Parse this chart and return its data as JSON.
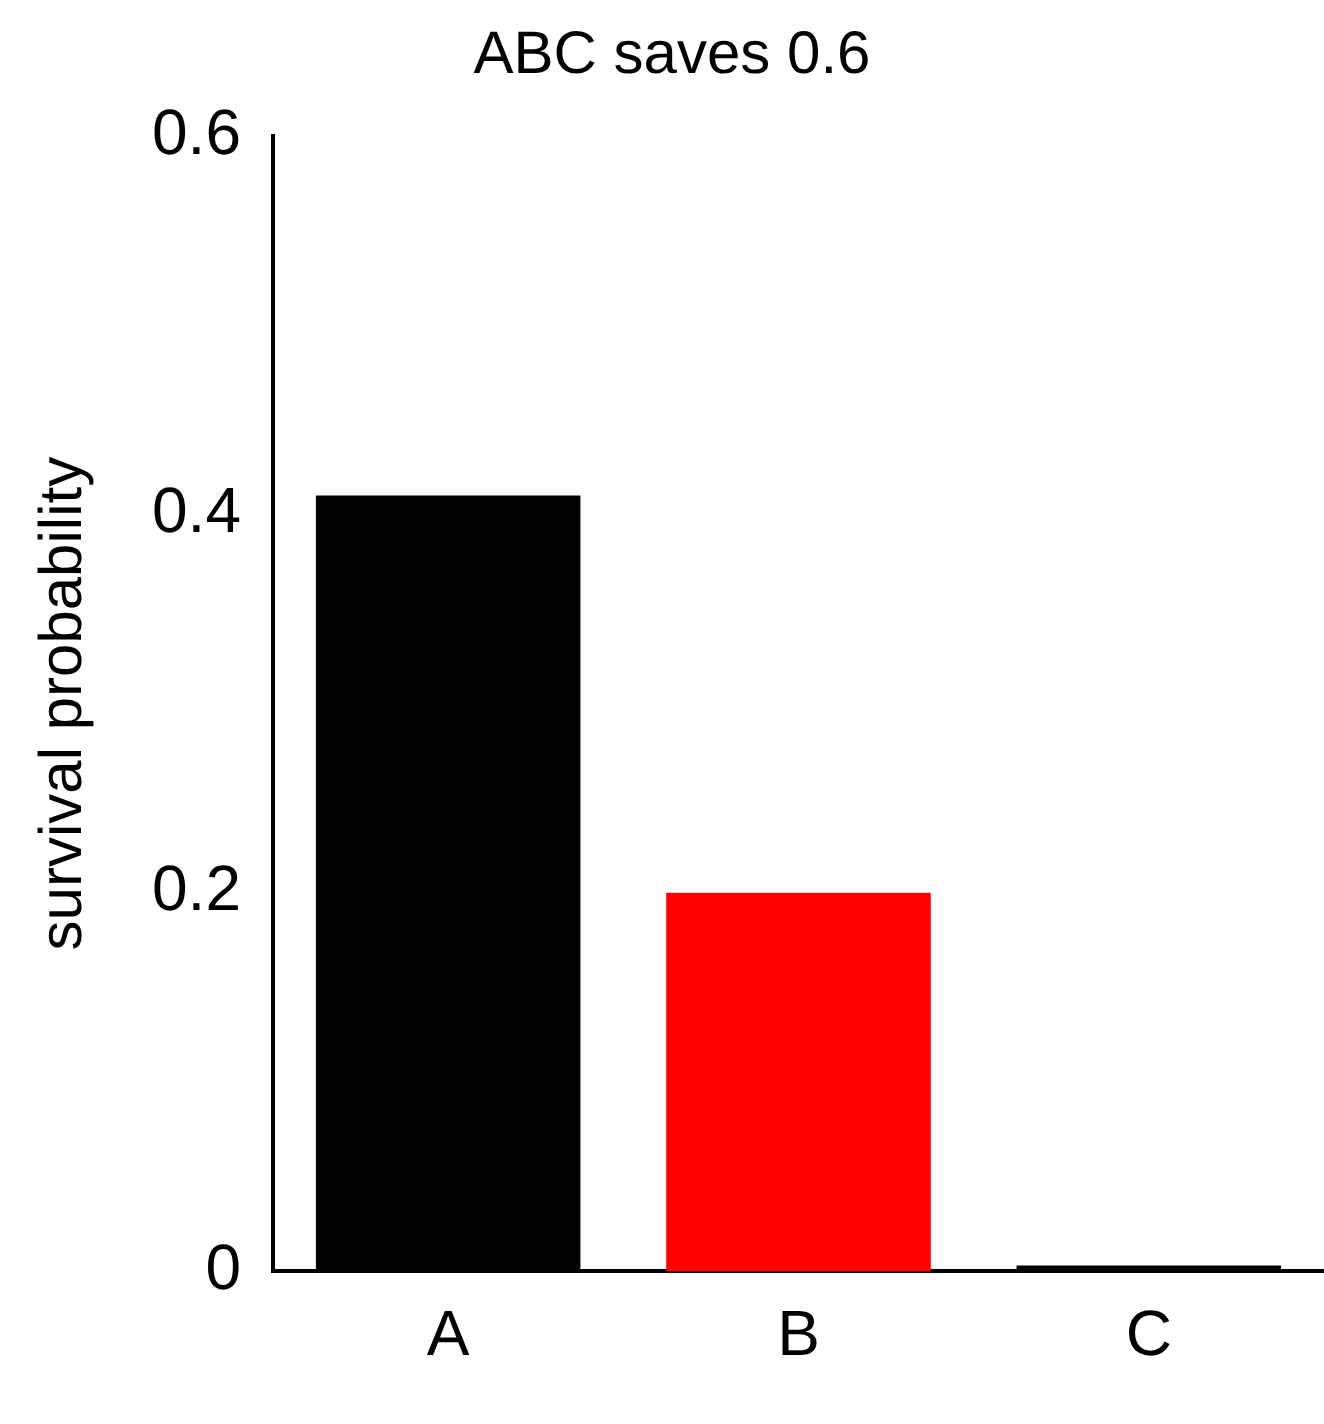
{
  "chart_data": {
    "type": "bar",
    "title": "ABC saves 0.6",
    "ylabel": "survival probability",
    "categories": [
      "A",
      "B",
      "C"
    ],
    "values": [
      0.41,
      0.2,
      0.003
    ],
    "colors": [
      "#000000",
      "#ff0000",
      "#000000"
    ],
    "ylim": [
      0,
      0.6
    ],
    "yticks": [
      0,
      0.2,
      0.4,
      0.6
    ],
    "grid": false,
    "legend": false
  }
}
